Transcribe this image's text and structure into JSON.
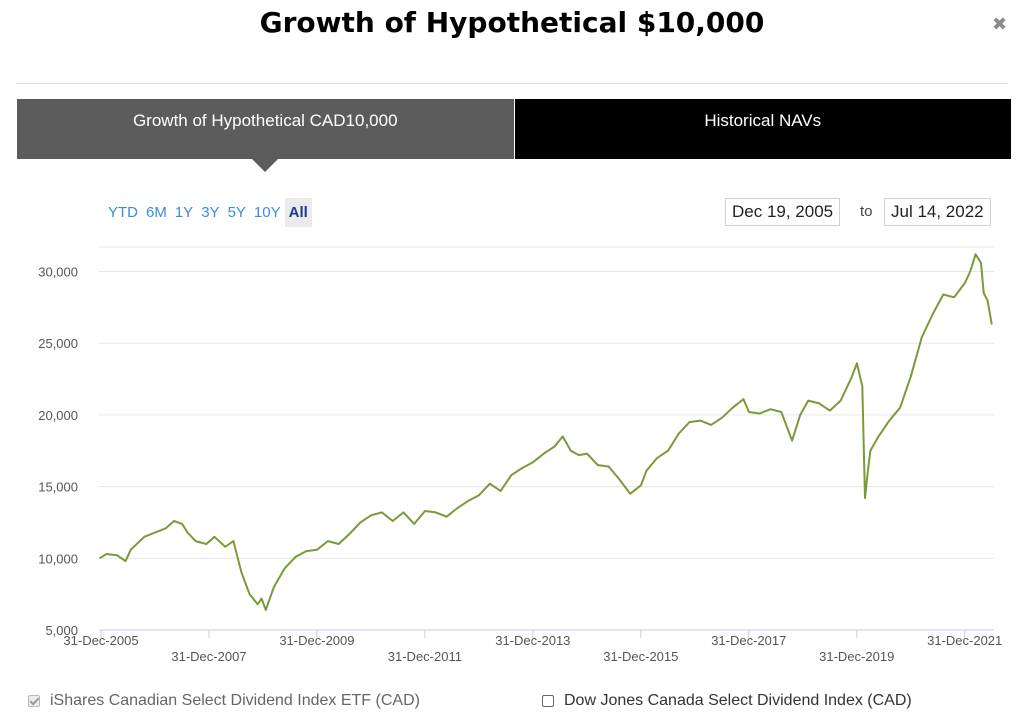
{
  "modal": {
    "title": "Growth of Hypothetical $10,000",
    "close_icon": "close-icon"
  },
  "tabs": [
    {
      "label": "Growth of Hypothetical CAD10,000",
      "active": true
    },
    {
      "label": "Historical NAVs",
      "active": false
    }
  ],
  "range_buttons": [
    "YTD",
    "6M",
    "1Y",
    "3Y",
    "5Y",
    "10Y",
    "All"
  ],
  "selected_range": "All",
  "date_range": {
    "from": "Dec 19, 2005",
    "to_label": "to",
    "to": "Jul 14, 2022"
  },
  "legend": [
    {
      "label": "iShares Canadian Select Dividend Index ETF (CAD)",
      "checked": true,
      "disabled": true
    },
    {
      "label": "Dow Jones Canada Select Dividend Index (CAD)",
      "checked": false,
      "disabled": false
    }
  ],
  "colors": {
    "line": "#7a9a3a",
    "tab_active": "#5c5c5c",
    "tab_inactive": "#000000",
    "range_link": "#3a8de0"
  },
  "chart_data": {
    "type": "line",
    "title": "",
    "xlabel": "",
    "ylabel": "",
    "ylim": [
      5000,
      31500
    ],
    "y_ticks": [
      5000,
      10000,
      15000,
      20000,
      25000,
      30000
    ],
    "y_tick_labels": [
      "5,000",
      "10,000",
      "15,000",
      "20,000",
      "25,000",
      "30,000"
    ],
    "x_ticks": [
      2005.997,
      2007.997,
      2009.997,
      2011.997,
      2013.997,
      2015.997,
      2017.997,
      2019.997,
      2021.997
    ],
    "x_tick_labels": [
      "31-Dec-2005",
      "31-Dec-2007",
      "31-Dec-2009",
      "31-Dec-2011",
      "31-Dec-2013",
      "31-Dec-2015",
      "31-Dec-2017",
      "31-Dec-2019",
      "31-Dec-2021"
    ],
    "xlim": [
      2005.96,
      2022.54
    ],
    "grid": "horizontal",
    "series": [
      {
        "name": "iShares Canadian Select Dividend Index ETF (CAD)",
        "x": [
          2005.97,
          2006.1,
          2006.3,
          2006.45,
          2006.55,
          2006.8,
          2007.0,
          2007.2,
          2007.35,
          2007.5,
          2007.6,
          2007.75,
          2007.95,
          2008.1,
          2008.3,
          2008.45,
          2008.6,
          2008.75,
          2008.9,
          2008.97,
          2009.05,
          2009.2,
          2009.4,
          2009.6,
          2009.8,
          2010.0,
          2010.2,
          2010.4,
          2010.6,
          2010.8,
          2011.0,
          2011.2,
          2011.4,
          2011.6,
          2011.8,
          2012.0,
          2012.2,
          2012.4,
          2012.6,
          2012.8,
          2013.0,
          2013.2,
          2013.4,
          2013.6,
          2013.8,
          2014.0,
          2014.2,
          2014.4,
          2014.55,
          2014.7,
          2014.85,
          2015.0,
          2015.2,
          2015.4,
          2015.6,
          2015.8,
          2016.0,
          2016.1,
          2016.3,
          2016.5,
          2016.7,
          2016.9,
          2017.1,
          2017.3,
          2017.5,
          2017.7,
          2017.9,
          2018.0,
          2018.2,
          2018.4,
          2018.6,
          2018.8,
          2018.95,
          2019.1,
          2019.3,
          2019.5,
          2019.7,
          2019.9,
          2020.0,
          2020.1,
          2020.15,
          2020.2,
          2020.25,
          2020.4,
          2020.6,
          2020.8,
          2021.0,
          2021.2,
          2021.4,
          2021.6,
          2021.8,
          2022.0,
          2022.1,
          2022.2,
          2022.3,
          2022.35,
          2022.42,
          2022.5
        ],
        "y": [
          10000,
          10300,
          10200,
          9800,
          10600,
          11500,
          11800,
          12100,
          12600,
          12400,
          11800,
          11200,
          11000,
          11500,
          10800,
          11200,
          9000,
          7500,
          6800,
          7200,
          6400,
          8000,
          9300,
          10100,
          10500,
          10600,
          11200,
          11000,
          11700,
          12500,
          13000,
          13200,
          12600,
          13200,
          12400,
          13300,
          13200,
          12900,
          13500,
          14000,
          14400,
          15200,
          14700,
          15800,
          16300,
          16700,
          17300,
          17800,
          18500,
          17500,
          17200,
          17300,
          16500,
          16400,
          15500,
          14500,
          15100,
          16100,
          17000,
          17500,
          18700,
          19500,
          19600,
          19300,
          19800,
          20500,
          21100,
          20200,
          20100,
          20400,
          20200,
          18200,
          20000,
          21000,
          20800,
          20300,
          21000,
          22600,
          23600,
          22000,
          14200,
          16000,
          17500,
          18500,
          19600,
          20500,
          22700,
          25400,
          27000,
          28400,
          28200,
          29200,
          30000,
          31200,
          30600,
          28500,
          28000,
          26300
        ]
      }
    ]
  }
}
